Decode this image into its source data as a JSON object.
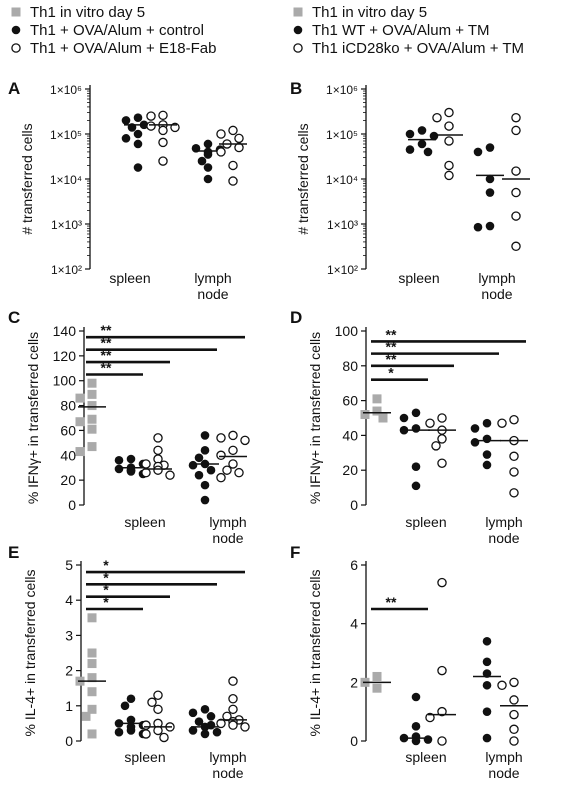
{
  "legends": {
    "left": [
      {
        "label": "Th1 in vitro day 5",
        "marker": "square",
        "color": "#aaaaaa"
      },
      {
        "label": "Th1 + OVA/Alum + control",
        "marker": "filled",
        "color": "#111111"
      },
      {
        "label": "Th1 + OVA/Alum + E18-Fab",
        "marker": "open",
        "color": "#111111"
      }
    ],
    "right": [
      {
        "label": "Th1 in vitro day 5",
        "marker": "square",
        "color": "#aaaaaa"
      },
      {
        "label": "Th1 WT + OVA/Alum + TM",
        "marker": "filled",
        "color": "#111111"
      },
      {
        "label": "Th1 iCD28ko + OVA/Alum + TM",
        "marker": "open",
        "color": "#111111"
      }
    ]
  },
  "chart_data": [
    {
      "panel": "A",
      "type": "scatter",
      "scale": "log",
      "ylabel": "# transferred cells",
      "yticks": [
        "1×10²",
        "1×10³",
        "1×10⁴",
        "1×10⁵",
        "1×10⁶"
      ],
      "ylim": [
        100,
        1000000
      ],
      "groups": [
        {
          "name": "spleen",
          "series": [
            {
              "marker": "filled",
              "values": [
                230000,
                200000,
                160000,
                140000,
                100000,
                80000,
                60000,
                18000
              ],
              "median": 160000
            },
            {
              "marker": "open",
              "values": [
                260000,
                250000,
                160000,
                150000,
                140000,
                120000,
                65000,
                25000
              ],
              "median": 160000
            }
          ]
        },
        {
          "name": "lymph node",
          "series": [
            {
              "marker": "filled",
              "values": [
                60000,
                48000,
                45000,
                40000,
                35000,
                25000,
                18000,
                10000
              ],
              "median": 42000
            },
            {
              "marker": "open",
              "values": [
                120000,
                100000,
                80000,
                60000,
                50000,
                40000,
                20000,
                9000
              ],
              "median": 60000
            }
          ]
        }
      ],
      "significance": []
    },
    {
      "panel": "B",
      "type": "scatter",
      "scale": "log",
      "ylabel": "# transferred cells",
      "yticks": [
        "1×10²",
        "1×10³",
        "1×10⁴",
        "1×10⁵",
        "1×10⁶"
      ],
      "ylim": [
        100,
        1000000
      ],
      "groups": [
        {
          "name": "spleen",
          "series": [
            {
              "marker": "filled",
              "values": [
                120000,
                100000,
                90000,
                60000,
                45000,
                40000
              ],
              "median": 75000
            },
            {
              "marker": "open",
              "values": [
                300000,
                230000,
                150000,
                70000,
                20000,
                12000
              ],
              "median": 95000
            }
          ]
        },
        {
          "name": "lymph node",
          "series": [
            {
              "marker": "filled",
              "values": [
                50000,
                40000,
                10000,
                5000,
                900,
                850
              ],
              "median": 12000
            },
            {
              "marker": "open",
              "values": [
                230000,
                120000,
                15000,
                5000,
                1500,
                320
              ],
              "median": 10000
            }
          ]
        }
      ],
      "significance": []
    },
    {
      "panel": "C",
      "type": "scatter",
      "scale": "linear",
      "ylabel": "% IFNγ+ in transferred cells",
      "ylim": [
        0,
        140
      ],
      "ytick_step": 20,
      "control": {
        "marker": "square",
        "values": [
          98,
          89,
          86,
          80,
          69,
          67,
          61,
          47,
          43
        ],
        "median": 79
      },
      "groups": [
        {
          "name": "spleen",
          "series": [
            {
              "marker": "filled",
              "values": [
                37,
                36,
                33,
                30,
                29,
                28,
                28,
                27,
                25
              ],
              "median": 30
            },
            {
              "marker": "open",
              "values": [
                54,
                44,
                37,
                33,
                32,
                31,
                28,
                26,
                24
              ],
              "median": 29
            }
          ]
        },
        {
          "name": "lymph node",
          "series": [
            {
              "marker": "filled",
              "values": [
                56,
                44,
                38,
                33,
                32,
                28,
                24,
                16,
                4
              ],
              "median": 33
            },
            {
              "marker": "open",
              "values": [
                56,
                54,
                52,
                44,
                40,
                33,
                28,
                26,
                22
              ],
              "median": 39
            }
          ]
        }
      ],
      "significance": [
        {
          "label": "**",
          "y": 135,
          "to": "lymph node open"
        },
        {
          "label": "**",
          "y": 125,
          "to": "lymph node filled"
        },
        {
          "label": "**",
          "y": 115,
          "to": "spleen open"
        },
        {
          "label": "**",
          "y": 105,
          "to": "spleen filled"
        }
      ]
    },
    {
      "panel": "D",
      "type": "scatter",
      "scale": "linear",
      "ylabel": "% IFNγ+ in transferred cells",
      "ylim": [
        0,
        100
      ],
      "ytick_step": 20,
      "control": {
        "marker": "square",
        "values": [
          61,
          54,
          52,
          50
        ],
        "median": 53
      },
      "groups": [
        {
          "name": "spleen",
          "series": [
            {
              "marker": "filled",
              "values": [
                53,
                50,
                44,
                43,
                22,
                11
              ],
              "median": 43
            },
            {
              "marker": "open",
              "values": [
                50,
                47,
                43,
                38,
                34,
                24
              ],
              "median": 43
            }
          ]
        },
        {
          "name": "lymph node",
          "series": [
            {
              "marker": "filled",
              "values": [
                47,
                44,
                38,
                36,
                29,
                23
              ],
              "median": 37
            },
            {
              "marker": "open",
              "values": [
                49,
                47,
                37,
                28,
                19,
                7
              ],
              "median": 37
            }
          ]
        }
      ],
      "significance": [
        {
          "label": "**",
          "y": 94,
          "to": "lymph node open"
        },
        {
          "label": "**",
          "y": 87,
          "to": "lymph node filled"
        },
        {
          "label": "**",
          "y": 80,
          "to": "spleen open"
        },
        {
          "label": "*",
          "y": 72,
          "to": "spleen filled"
        }
      ]
    },
    {
      "panel": "E",
      "type": "scatter",
      "scale": "linear",
      "ylabel": "% IL-4+ in transferred cells",
      "ylim": [
        0,
        5
      ],
      "ytick_step": 1,
      "control": {
        "marker": "square",
        "values": [
          3.5,
          2.5,
          2.2,
          1.8,
          1.7,
          1.4,
          0.9,
          0.7,
          0.2
        ],
        "median": 1.7
      },
      "groups": [
        {
          "name": "spleen",
          "series": [
            {
              "marker": "filled",
              "values": [
                1.2,
                1.0,
                0.6,
                0.5,
                0.45,
                0.4,
                0.3,
                0.25,
                0.2
              ],
              "median": 0.5
            },
            {
              "marker": "open",
              "values": [
                1.3,
                1.1,
                0.9,
                0.5,
                0.45,
                0.4,
                0.3,
                0.2,
                0.1
              ],
              "median": 0.4
            }
          ]
        },
        {
          "name": "lymph node",
          "series": [
            {
              "marker": "filled",
              "values": [
                0.9,
                0.8,
                0.7,
                0.55,
                0.45,
                0.4,
                0.3,
                0.25,
                0.2
              ],
              "median": 0.4
            },
            {
              "marker": "open",
              "values": [
                1.7,
                1.2,
                0.9,
                0.7,
                0.6,
                0.55,
                0.5,
                0.45,
                0.4
              ],
              "median": 0.6
            }
          ]
        }
      ],
      "significance": [
        {
          "label": "*",
          "y": 4.8,
          "to": "lymph node open"
        },
        {
          "label": "*",
          "y": 4.45,
          "to": "lymph node filled"
        },
        {
          "label": "*",
          "y": 4.1,
          "to": "spleen open"
        },
        {
          "label": "*",
          "y": 3.75,
          "to": "spleen filled"
        }
      ]
    },
    {
      "panel": "F",
      "type": "scatter",
      "scale": "linear",
      "ylabel": "% IL-4+ in transferred cells",
      "ylim": [
        0,
        6
      ],
      "ytick_step": 2,
      "control": {
        "marker": "square",
        "values": [
          2.2,
          2.0,
          1.8
        ],
        "median": 2.0
      },
      "groups": [
        {
          "name": "spleen",
          "series": [
            {
              "marker": "filled",
              "values": [
                1.5,
                0.5,
                0.15,
                0.1,
                0.05,
                0.0
              ],
              "median": 0.1
            },
            {
              "marker": "open",
              "values": [
                5.4,
                2.4,
                1.0,
                0.8,
                0.0
              ],
              "median": 0.9
            }
          ]
        },
        {
          "name": "lymph node",
          "series": [
            {
              "marker": "filled",
              "values": [
                3.4,
                2.7,
                2.3,
                1.9,
                1.0,
                0.1
              ],
              "median": 2.2
            },
            {
              "marker": "open",
              "values": [
                2.0,
                1.9,
                1.4,
                0.9,
                0.4,
                0.0
              ],
              "median": 1.2
            }
          ]
        }
      ],
      "significance": [
        {
          "label": "**",
          "y": 4.5,
          "to": "spleen filled"
        }
      ]
    }
  ]
}
